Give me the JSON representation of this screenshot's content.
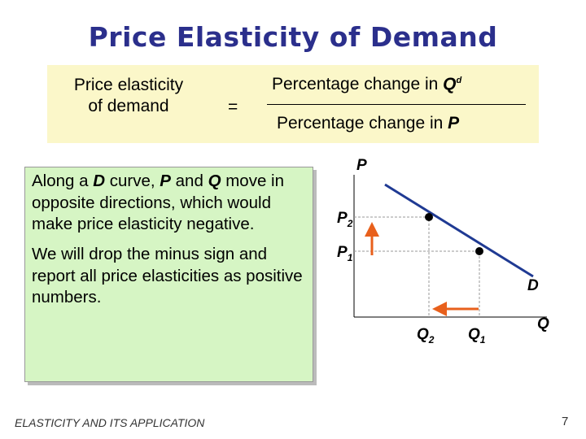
{
  "title": "Price Elasticity of Demand",
  "formula": {
    "left": [
      "Price elasticity",
      "of demand"
    ],
    "equals": "=",
    "numerator": {
      "text": "Percentage change in ",
      "variable": "Q",
      "superscript": "d"
    },
    "denominator": {
      "text": "Percentage change in ",
      "variable": "P"
    }
  },
  "note": {
    "paragraphs": [
      [
        "Along a ",
        "D",
        " curve, ",
        "P",
        " and ",
        "Q",
        " move in opposite directions, which would make price elasticity negative."
      ],
      [
        "We will drop the minus sign and report all price elasticities as positive numbers."
      ]
    ]
  },
  "graph": {
    "y_axis_label": "P",
    "x_axis_label": "Q",
    "curve_label": "D",
    "price_labels": [
      {
        "letter": "P",
        "sub": "2"
      },
      {
        "letter": "P",
        "sub": "1"
      }
    ],
    "quantity_labels": [
      {
        "letter": "Q",
        "sub": "2"
      },
      {
        "letter": "Q",
        "sub": "1"
      }
    ]
  },
  "footer": {
    "text": "ELASTICITY AND ITS APPLICATION",
    "page": 7
  }
}
